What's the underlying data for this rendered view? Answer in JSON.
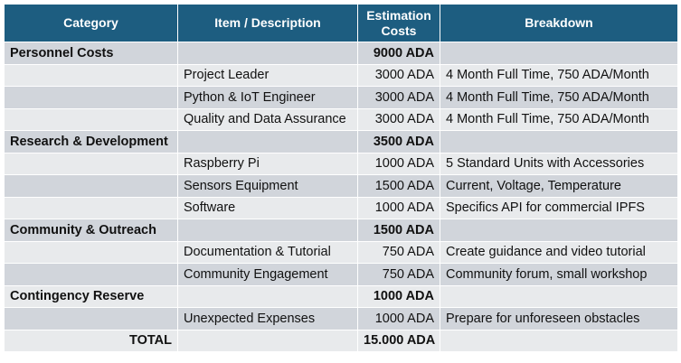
{
  "headers": {
    "category": "Category",
    "item": "Item / Description",
    "cost_line1": "Estimation",
    "cost_line2": "Costs",
    "breakdown": "Breakdown"
  },
  "rows": [
    {
      "category": "Personnel Costs",
      "item": "",
      "cost": "9000 ADA",
      "breakdown": ""
    },
    {
      "category": "",
      "item": "Project Leader",
      "cost": "3000 ADA",
      "breakdown": "4 Month Full Time, 750 ADA/Month"
    },
    {
      "category": "",
      "item": "Python & IoT Engineer",
      "cost": "3000 ADA",
      "breakdown": "4 Month Full Time, 750 ADA/Month"
    },
    {
      "category": "",
      "item": "Quality and Data Assurance",
      "cost": "3000 ADA",
      "breakdown": "4 Month Full Time, 750 ADA/Month"
    },
    {
      "category": "Research & Development",
      "item": "",
      "cost": "3500 ADA",
      "breakdown": ""
    },
    {
      "category": "",
      "item": "Raspberry Pi",
      "cost": "1000 ADA",
      "breakdown": "5 Standard Units with Accessories"
    },
    {
      "category": "",
      "item": "Sensors Equipment",
      "cost": "1500 ADA",
      "breakdown": "Current, Voltage, Temperature"
    },
    {
      "category": "",
      "item": "Software",
      "cost": "1000 ADA",
      "breakdown": "Specifics API for commercial IPFS"
    },
    {
      "category": "Community & Outreach",
      "item": "",
      "cost": "1500 ADA",
      "breakdown": ""
    },
    {
      "category": "",
      "item": "Documentation & Tutorial",
      "cost": "750 ADA",
      "breakdown": "Create guidance and video tutorial"
    },
    {
      "category": "",
      "item": "Community Engagement",
      "cost": "750 ADA",
      "breakdown": "Community forum, small workshop"
    },
    {
      "category": "Contingency Reserve",
      "item": "",
      "cost": "1000 ADA",
      "breakdown": ""
    },
    {
      "category": "",
      "item": "Unexpected Expenses",
      "cost": "1000 ADA",
      "breakdown": "Prepare for unforeseen obstacles"
    }
  ],
  "total": {
    "label": "TOTAL",
    "cost": "15.000 ADA"
  }
}
